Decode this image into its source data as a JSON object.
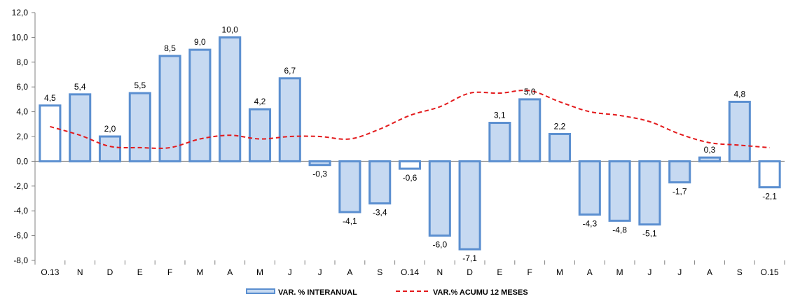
{
  "chart_data": {
    "type": "bar",
    "categories": [
      "O.13",
      "N",
      "D",
      "E",
      "F",
      "M",
      "A",
      "M",
      "J",
      "J",
      "A",
      "S",
      "O.14",
      "N",
      "D",
      "E",
      "F",
      "M",
      "A",
      "M",
      "J",
      "J",
      "A",
      "S",
      "O.15"
    ],
    "ylim": [
      -8,
      12
    ],
    "y_ticks": [
      -8,
      -6,
      -4,
      -2,
      0,
      2,
      4,
      6,
      8,
      10,
      12
    ],
    "y_tick_labels": [
      "-8,0",
      "-6,0",
      "-4,0",
      "-2,0",
      "0,0",
      "2,0",
      "4,0",
      "6,0",
      "8,0",
      "10,0",
      "12,0"
    ],
    "grid": false,
    "legend_position": "bottom",
    "series": [
      {
        "name": "VAR. % INTERANUAL",
        "type": "bar",
        "values": [
          4.5,
          5.4,
          2.0,
          5.5,
          8.5,
          9.0,
          10.0,
          4.2,
          6.7,
          -0.3,
          -4.1,
          -3.4,
          -0.6,
          -6.0,
          -7.1,
          3.1,
          5.0,
          2.2,
          -4.3,
          -4.8,
          -5.1,
          -1.7,
          0.3,
          4.8,
          -2.1
        ],
        "labels": [
          "4,5",
          "5,4",
          "2,0",
          "5,5",
          "8,5",
          "9,0",
          "10,0",
          "4,2",
          "6,7",
          "-0,3",
          "-4,1",
          "-3,4",
          "-0,6",
          "-6,0",
          "-7,1",
          "3,1",
          "5,0",
          "2,2",
          "-4,3",
          "-4,8",
          "-5,1",
          "-1,7",
          "0,3",
          "4,8",
          "-2,1"
        ],
        "highlighted_white": [
          0,
          12,
          24
        ],
        "color": "#5b8fd0",
        "fill": "#c6d9f1"
      },
      {
        "name": "VAR.% ACUMU 12 MESES",
        "type": "line",
        "style": "dashed",
        "color": "#e31a1c",
        "values": [
          2.8,
          2.1,
          1.2,
          1.1,
          1.1,
          1.8,
          2.1,
          1.8,
          2.0,
          2.0,
          1.8,
          2.6,
          3.7,
          4.4,
          5.5,
          5.5,
          5.7,
          4.8,
          4.0,
          3.7,
          3.2,
          2.2,
          1.5,
          1.3,
          1.1
        ]
      }
    ]
  }
}
